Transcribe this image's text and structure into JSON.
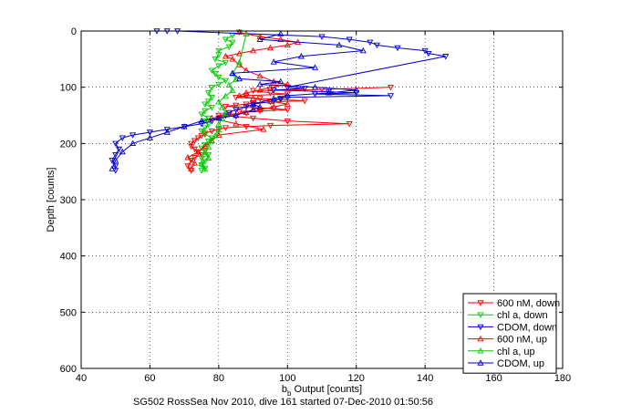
{
  "chart_data": {
    "type": "scatter",
    "caption": "SG502 RossSea Nov 2010, dive 161 started 07-Dec-2010 01:50:56",
    "xlabel_main": "b",
    "xlabel_sub": "b",
    "xlabel_rest": " Output [counts]",
    "ylabel": "Depth [counts]",
    "xlim": [
      40,
      180
    ],
    "ylim": [
      0,
      600
    ],
    "y_reversed": true,
    "grid": true,
    "legend_position": "bottom-right",
    "xticks": [
      "40",
      "60",
      "80",
      "100",
      "120",
      "140",
      "160",
      "180"
    ],
    "yticks": [
      "0",
      "100",
      "200",
      "300",
      "400",
      "500",
      "600"
    ],
    "series": [
      {
        "name": "600 nM, down",
        "color": "#ff0000",
        "marker": "down",
        "x": [
          130,
          110,
          90,
          95,
          100,
          88,
          85,
          92,
          98,
          105,
          95,
          90,
          88,
          85,
          82,
          90,
          96,
          100,
          92,
          86,
          88,
          83,
          80,
          85,
          90,
          100,
          118,
          95,
          88,
          82,
          80,
          78,
          76,
          75,
          74,
          73,
          72,
          72,
          73,
          74,
          75,
          73,
          72,
          71,
          72
        ],
        "y": [
          100,
          104,
          106,
          110,
          112,
          115,
          118,
          120,
          122,
          124,
          126,
          128,
          130,
          132,
          134,
          136,
          138,
          140,
          142,
          144,
          146,
          148,
          150,
          152,
          155,
          160,
          165,
          168,
          170,
          172,
          175,
          178,
          182,
          186,
          190,
          195,
          200,
          205,
          210,
          215,
          220,
          225,
          230,
          240,
          248
        ]
      },
      {
        "name": "chl a, down",
        "color": "#00cc00",
        "marker": "down",
        "x": [
          86,
          84,
          82,
          84,
          83,
          80,
          80,
          79,
          82,
          80,
          78,
          79,
          80,
          82,
          80,
          78,
          77,
          78,
          77,
          76,
          78,
          76,
          75,
          77,
          76,
          77,
          76,
          75,
          76,
          78,
          77,
          76,
          75,
          76,
          77,
          75,
          76,
          75,
          76,
          75
        ],
        "y": [
          2,
          8,
          15,
          20,
          28,
          35,
          42,
          50,
          56,
          62,
          70,
          76,
          82,
          88,
          95,
          100,
          110,
          118,
          125,
          130,
          136,
          142,
          148,
          155,
          160,
          166,
          172,
          178,
          184,
          190,
          196,
          202,
          208,
          214,
          220,
          226,
          232,
          238,
          244,
          248
        ]
      },
      {
        "name": "CDOM, down",
        "color": "#0000cc",
        "marker": "down",
        "x": [
          62,
          65,
          68,
          110,
          118,
          124,
          126,
          132,
          140,
          141,
          146,
          100,
          105,
          96,
          112,
          120,
          108,
          130,
          100,
          98,
          96,
          90,
          88,
          85,
          83,
          82,
          80,
          78,
          75,
          70,
          65,
          60,
          55,
          52,
          50,
          51,
          50,
          49,
          50,
          50
        ],
        "y": [
          0,
          0,
          0,
          10,
          15,
          20,
          25,
          30,
          35,
          40,
          45,
          100,
          102,
          105,
          108,
          110,
          112,
          115,
          118,
          120,
          125,
          130,
          135,
          140,
          145,
          150,
          155,
          160,
          165,
          170,
          175,
          180,
          185,
          190,
          200,
          210,
          220,
          230,
          240,
          248
        ]
      },
      {
        "name": "600 nM, up",
        "color": "#ff0000",
        "marker": "up",
        "x": [
          72,
          73,
          71,
          74,
          76,
          78,
          80,
          93,
          85,
          78,
          88,
          92,
          96,
          100,
          95,
          90,
          86,
          88,
          92,
          95,
          100,
          96,
          92,
          88,
          86,
          84,
          82,
          86,
          90,
          95,
          100,
          103,
          98,
          92,
          88,
          86
        ],
        "y": [
          245,
          235,
          225,
          215,
          205,
          195,
          185,
          175,
          165,
          155,
          145,
          140,
          135,
          130,
          125,
          120,
          115,
          110,
          105,
          100,
          95,
          90,
          80,
          70,
          60,
          50,
          45,
          40,
          35,
          30,
          25,
          20,
          15,
          10,
          5,
          2
        ]
      },
      {
        "name": "chl a, up",
        "color": "#00cc00",
        "marker": "up",
        "x": [
          76,
          75,
          77,
          76,
          77,
          78,
          79,
          80,
          80,
          81,
          82,
          81,
          80,
          82,
          84,
          83,
          85,
          84,
          86,
          88
        ],
        "y": [
          246,
          236,
          226,
          216,
          206,
          196,
          186,
          176,
          166,
          156,
          146,
          136,
          126,
          116,
          106,
          96,
          86,
          76,
          56,
          5
        ]
      },
      {
        "name": "CDOM, up",
        "color": "#0000cc",
        "marker": "up",
        "x": [
          49,
          50,
          52,
          55,
          60,
          65,
          70,
          75,
          80,
          85,
          90,
          92,
          90,
          96,
          100,
          112,
          120,
          108,
          92,
          98,
          86,
          84,
          108,
          96,
          104,
          122,
          115,
          92,
          98
        ],
        "y": [
          245,
          230,
          215,
          200,
          190,
          180,
          170,
          160,
          155,
          150,
          140,
          135,
          130,
          120,
          115,
          110,
          105,
          100,
          95,
          90,
          85,
          75,
          65,
          55,
          45,
          35,
          25,
          15,
          5
        ]
      }
    ]
  }
}
